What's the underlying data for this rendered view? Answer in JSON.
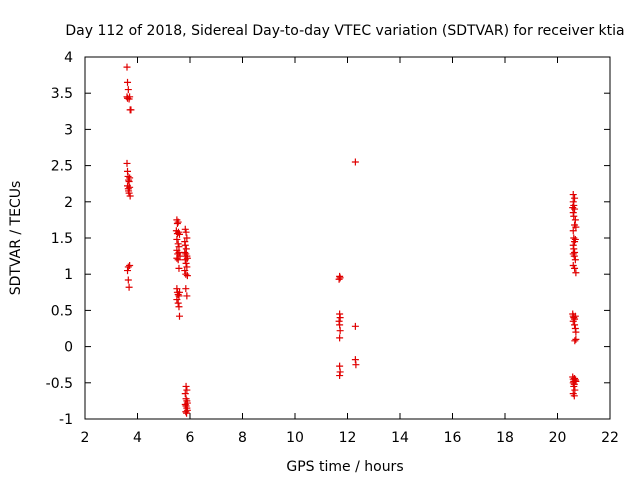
{
  "chart_data": {
    "type": "scatter",
    "title": "Day 112 of 2018, Sidereal Day-to-day VTEC variation (SDTVAR) for receiver ktia",
    "xlabel": "GPS time / hours",
    "ylabel": "SDTVAR / TECUs",
    "xlim": [
      2,
      22
    ],
    "ylim": [
      -1,
      4
    ],
    "xticks": [
      "2",
      "4",
      "6",
      "8",
      "10",
      "12",
      "14",
      "16",
      "18",
      "20",
      "22"
    ],
    "yticks": [
      "-1",
      "-0.5",
      "0",
      "0.5",
      "1",
      "1.5",
      "2",
      "2.5",
      "3",
      "3.5",
      "4"
    ],
    "marker": "plus",
    "color": "#e00000",
    "grid": false,
    "series": [
      {
        "points": [
          [
            3.6,
            3.86
          ],
          [
            3.62,
            3.65
          ],
          [
            3.65,
            3.55
          ],
          [
            3.6,
            3.45
          ],
          [
            3.62,
            3.43
          ],
          [
            3.68,
            3.42
          ],
          [
            3.7,
            3.45
          ],
          [
            3.72,
            3.27
          ],
          [
            3.75,
            3.27
          ],
          [
            3.6,
            2.53
          ],
          [
            3.62,
            2.42
          ],
          [
            3.64,
            2.35
          ],
          [
            3.66,
            2.3
          ],
          [
            3.68,
            2.28
          ],
          [
            3.7,
            2.33
          ],
          [
            3.62,
            2.22
          ],
          [
            3.65,
            2.18
          ],
          [
            3.68,
            2.12
          ],
          [
            3.72,
            2.08
          ],
          [
            3.66,
            2.15
          ],
          [
            3.7,
            2.2
          ],
          [
            3.65,
            1.1
          ],
          [
            3.7,
            1.12
          ],
          [
            3.62,
            1.05
          ],
          [
            3.65,
            0.92
          ],
          [
            3.68,
            0.82
          ],
          [
            5.5,
            1.75
          ],
          [
            5.52,
            1.7
          ],
          [
            5.55,
            1.72
          ],
          [
            5.48,
            1.6
          ],
          [
            5.52,
            1.56
          ],
          [
            5.56,
            1.58
          ],
          [
            5.6,
            1.55
          ],
          [
            5.5,
            1.48
          ],
          [
            5.55,
            1.42
          ],
          [
            5.58,
            1.38
          ],
          [
            5.5,
            1.33
          ],
          [
            5.53,
            1.28
          ],
          [
            5.58,
            1.3
          ],
          [
            5.62,
            1.25
          ],
          [
            5.5,
            1.22
          ],
          [
            5.55,
            1.2
          ],
          [
            5.58,
            1.08
          ],
          [
            5.5,
            0.8
          ],
          [
            5.52,
            0.75
          ],
          [
            5.55,
            0.72
          ],
          [
            5.58,
            0.7
          ],
          [
            5.6,
            0.75
          ],
          [
            5.5,
            0.65
          ],
          [
            5.55,
            0.6
          ],
          [
            5.58,
            0.55
          ],
          [
            5.6,
            0.42
          ],
          [
            5.82,
            1.62
          ],
          [
            5.85,
            1.58
          ],
          [
            5.88,
            1.5
          ],
          [
            5.8,
            1.45
          ],
          [
            5.82,
            1.4
          ],
          [
            5.86,
            1.35
          ],
          [
            5.8,
            1.3
          ],
          [
            5.84,
            1.28
          ],
          [
            5.88,
            1.25
          ],
          [
            5.9,
            1.22
          ],
          [
            5.82,
            1.2
          ],
          [
            5.85,
            1.15
          ],
          [
            5.88,
            1.1
          ],
          [
            5.8,
            1.05
          ],
          [
            5.84,
            1.0
          ],
          [
            5.9,
            0.98
          ],
          [
            5.84,
            0.8
          ],
          [
            5.88,
            0.7
          ],
          [
            5.85,
            -0.55
          ],
          [
            5.88,
            -0.6
          ],
          [
            5.82,
            -0.65
          ],
          [
            5.85,
            -0.72
          ],
          [
            5.88,
            -0.75
          ],
          [
            5.9,
            -0.78
          ],
          [
            5.82,
            -0.8
          ],
          [
            5.85,
            -0.82
          ],
          [
            5.88,
            -0.85
          ],
          [
            5.9,
            -0.88
          ],
          [
            5.84,
            -0.9
          ],
          [
            5.87,
            -0.92
          ],
          [
            11.7,
            0.97
          ],
          [
            11.72,
            0.95
          ],
          [
            11.68,
            0.93
          ],
          [
            11.7,
            0.45
          ],
          [
            11.72,
            0.4
          ],
          [
            11.68,
            0.35
          ],
          [
            11.7,
            0.3
          ],
          [
            11.72,
            0.22
          ],
          [
            11.7,
            0.12
          ],
          [
            11.7,
            -0.27
          ],
          [
            11.72,
            -0.35
          ],
          [
            11.7,
            -0.4
          ],
          [
            12.3,
            2.55
          ],
          [
            12.3,
            0.28
          ],
          [
            12.3,
            -0.18
          ],
          [
            12.32,
            -0.25
          ],
          [
            20.6,
            2.1
          ],
          [
            20.65,
            2.05
          ],
          [
            20.6,
            2.0
          ],
          [
            20.62,
            1.95
          ],
          [
            20.58,
            1.92
          ],
          [
            20.65,
            1.9
          ],
          [
            20.6,
            1.85
          ],
          [
            20.62,
            1.8
          ],
          [
            20.68,
            1.75
          ],
          [
            20.65,
            1.68
          ],
          [
            20.7,
            1.65
          ],
          [
            20.6,
            1.6
          ],
          [
            20.62,
            1.5
          ],
          [
            20.65,
            1.45
          ],
          [
            20.68,
            1.48
          ],
          [
            20.6,
            1.4
          ],
          [
            20.62,
            1.35
          ],
          [
            20.65,
            1.3
          ],
          [
            20.6,
            1.28
          ],
          [
            20.64,
            1.25
          ],
          [
            20.68,
            1.2
          ],
          [
            20.6,
            1.12
          ],
          [
            20.65,
            1.08
          ],
          [
            20.7,
            1.02
          ],
          [
            20.58,
            0.45
          ],
          [
            20.6,
            0.42
          ],
          [
            20.62,
            0.4
          ],
          [
            20.65,
            0.38
          ],
          [
            20.68,
            0.42
          ],
          [
            20.6,
            0.35
          ],
          [
            20.65,
            0.3
          ],
          [
            20.68,
            0.25
          ],
          [
            20.7,
            0.2
          ],
          [
            20.7,
            0.1
          ],
          [
            20.66,
            0.08
          ],
          [
            20.58,
            -0.42
          ],
          [
            20.6,
            -0.45
          ],
          [
            20.62,
            -0.48
          ],
          [
            20.65,
            -0.44
          ],
          [
            20.68,
            -0.46
          ],
          [
            20.6,
            -0.5
          ],
          [
            20.64,
            -0.52
          ],
          [
            20.7,
            -0.48
          ],
          [
            20.62,
            -0.55
          ],
          [
            20.66,
            -0.6
          ],
          [
            20.6,
            -0.65
          ],
          [
            20.64,
            -0.68
          ]
        ]
      }
    ]
  }
}
